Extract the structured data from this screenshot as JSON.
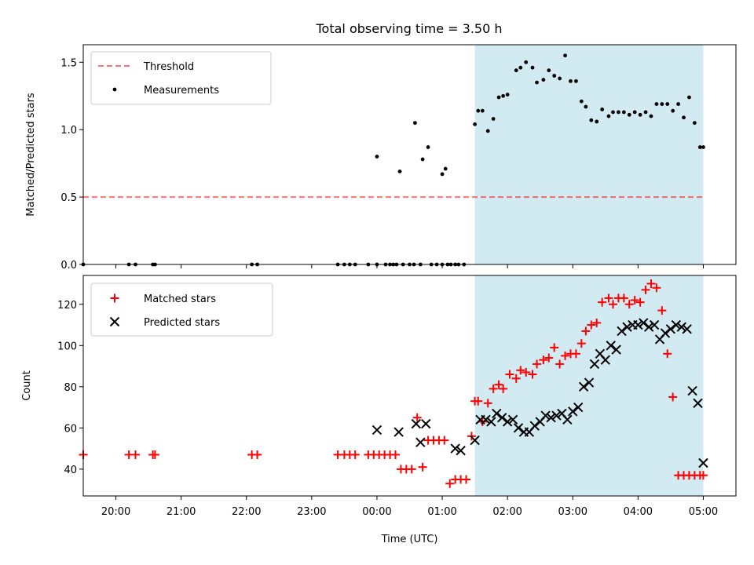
{
  "figure": {
    "title": "Total observing time = 3.50 h"
  },
  "colors": {
    "shade": "#add8e6",
    "threshold": "#ff0000",
    "measurements": "#000000",
    "matched": "#ff0000",
    "predicted": "#000000"
  },
  "chart_data": [
    {
      "type": "scatter",
      "name": "ratio",
      "ylabel": "Matched/Predicted stars",
      "ylim": [
        0,
        1.63
      ],
      "yticks": [
        0,
        0.5,
        1.0,
        1.5
      ],
      "ytick_labels": [
        "0.0",
        "0.5",
        "1.0",
        "1.5"
      ],
      "xlim": [
        "19:30",
        "05:30"
      ],
      "shaded_interval": [
        "01:30",
        "05:00"
      ],
      "legend_position": "upper-left",
      "legend": [
        "Threshold",
        "Measurements"
      ],
      "threshold": {
        "value": 0.5,
        "x_start": "19:30",
        "x_end": "05:00",
        "style": "dashed"
      },
      "measurements": {
        "x": [
          "19:30",
          "20:12",
          "20:18",
          "20:34",
          "20:36",
          "22:05",
          "22:10",
          "23:24",
          "23:30",
          "23:35",
          "23:40",
          "23:52",
          "00:00",
          "00:08",
          "00:12",
          "00:15",
          "00:18",
          "00:24",
          "00:30",
          "00:34",
          "00:40",
          "00:50",
          "00:55",
          "01:00",
          "01:05",
          "01:08",
          "01:12",
          "01:15",
          "01:20",
          "00:00",
          "00:21",
          "00:35",
          "00:42",
          "00:47",
          "01:00",
          "01:03",
          "01:30",
          "01:33",
          "01:37",
          "01:42",
          "01:47",
          "01:52",
          "01:56",
          "02:00",
          "02:08",
          "02:12",
          "02:17",
          "02:23",
          "02:27",
          "02:33",
          "02:38",
          "02:43",
          "02:48",
          "02:53",
          "02:58",
          "03:03",
          "03:08",
          "03:12",
          "03:17",
          "03:22",
          "03:27",
          "03:33",
          "03:37",
          "03:42",
          "03:47",
          "03:52",
          "03:57",
          "04:02",
          "04:07",
          "04:12",
          "04:17",
          "04:22",
          "04:27",
          "04:32",
          "04:37",
          "04:42",
          "04:47",
          "04:52",
          "04:57",
          "05:00"
        ],
        "y": [
          0,
          0,
          0,
          0,
          0,
          0,
          0,
          0,
          0,
          0,
          0,
          0,
          0,
          0,
          0,
          0,
          0,
          0,
          0,
          0,
          0,
          0,
          0,
          0,
          0,
          0,
          0,
          0,
          0,
          0.8,
          0.69,
          1.05,
          0.78,
          0.87,
          0.67,
          0.71,
          1.04,
          1.14,
          1.14,
          0.99,
          1.08,
          1.24,
          1.25,
          1.26,
          1.44,
          1.46,
          1.5,
          1.46,
          1.35,
          1.37,
          1.44,
          1.4,
          1.38,
          1.55,
          1.36,
          1.36,
          1.21,
          1.17,
          1.07,
          1.06,
          1.15,
          1.1,
          1.13,
          1.13,
          1.13,
          1.11,
          1.13,
          1.11,
          1.13,
          1.1,
          1.19,
          1.19,
          1.19,
          1.14,
          1.19,
          1.09,
          1.24,
          1.05,
          0.87,
          0.87
        ]
      }
    },
    {
      "type": "scatter",
      "name": "counts",
      "xlabel": "Time (UTC)",
      "ylabel": "Count",
      "ylim": [
        27,
        134
      ],
      "yticks": [
        40,
        60,
        80,
        100,
        120
      ],
      "xticks": [
        "20:00",
        "21:00",
        "22:00",
        "23:00",
        "00:00",
        "01:00",
        "02:00",
        "03:00",
        "04:00",
        "05:00"
      ],
      "xlim": [
        "19:30",
        "05:30"
      ],
      "shaded_interval": [
        "01:30",
        "05:00"
      ],
      "legend_position": "upper-left",
      "legend": [
        "Matched stars",
        "Predicted stars"
      ],
      "matched": {
        "x": [
          "19:30",
          "20:12",
          "20:18",
          "20:34",
          "20:36",
          "22:05",
          "22:10",
          "23:24",
          "23:30",
          "23:35",
          "23:40",
          "23:52",
          "23:57",
          "00:02",
          "00:07",
          "00:12",
          "00:17",
          "00:22",
          "00:27",
          "00:32",
          "00:37",
          "00:42",
          "00:47",
          "00:52",
          "00:57",
          "01:02",
          "01:07",
          "01:12",
          "01:17",
          "01:22",
          "01:27",
          "01:30",
          "01:33",
          "01:37",
          "01:42",
          "01:47",
          "01:52",
          "01:56",
          "02:02",
          "02:08",
          "02:12",
          "02:17",
          "02:23",
          "02:27",
          "02:33",
          "02:38",
          "02:43",
          "02:48",
          "02:53",
          "02:58",
          "03:03",
          "03:08",
          "03:12",
          "03:17",
          "03:22",
          "03:27",
          "03:33",
          "03:37",
          "03:42",
          "03:47",
          "03:52",
          "03:57",
          "04:02",
          "04:07",
          "04:12",
          "04:17",
          "04:22",
          "04:27",
          "04:32",
          "04:37",
          "04:42",
          "04:47",
          "04:52",
          "04:57",
          "05:00"
        ],
        "y": [
          47,
          47,
          47,
          47,
          47,
          47,
          47,
          47,
          47,
          47,
          47,
          47,
          47,
          47,
          47,
          47,
          47,
          40,
          40,
          40,
          65,
          41,
          54,
          54,
          54,
          54,
          33,
          35,
          35,
          35,
          56,
          73,
          73,
          63,
          72,
          79,
          81,
          79,
          86,
          84,
          88,
          87,
          86,
          91,
          93,
          94,
          99,
          91,
          95,
          96,
          96,
          101,
          107,
          110,
          111,
          121,
          123,
          120,
          123,
          123,
          120,
          122,
          121,
          127,
          130,
          128,
          117,
          96,
          75,
          37,
          37,
          37,
          37,
          37,
          37
        ],
        "marker": "+"
      },
      "predicted": {
        "x": [
          "00:00",
          "00:20",
          "00:36",
          "00:40",
          "00:45",
          "01:12",
          "01:17",
          "01:30",
          "01:35",
          "01:40",
          "01:45",
          "01:50",
          "01:55",
          "02:00",
          "02:05",
          "02:10",
          "02:15",
          "02:20",
          "02:25",
          "02:30",
          "02:35",
          "02:40",
          "02:45",
          "02:50",
          "02:55",
          "03:00",
          "03:05",
          "03:10",
          "03:15",
          "03:20",
          "03:25",
          "03:30",
          "03:35",
          "03:40",
          "03:45",
          "03:50",
          "03:55",
          "04:00",
          "04:05",
          "04:10",
          "04:15",
          "04:20",
          "04:25",
          "04:30",
          "04:35",
          "04:40",
          "04:45",
          "04:50",
          "04:55",
          "05:00"
        ],
        "y": [
          59,
          58,
          62,
          53,
          62,
          50,
          49,
          54,
          64,
          64,
          63,
          67,
          65,
          63,
          64,
          60,
          58,
          58,
          61,
          63,
          66,
          65,
          66,
          67,
          64,
          68,
          70,
          80,
          82,
          91,
          96,
          93,
          100,
          98,
          107,
          109,
          110,
          110,
          111,
          109,
          110,
          103,
          106,
          108,
          110,
          109,
          108,
          78,
          72,
          43
        ],
        "marker": "x"
      }
    }
  ]
}
